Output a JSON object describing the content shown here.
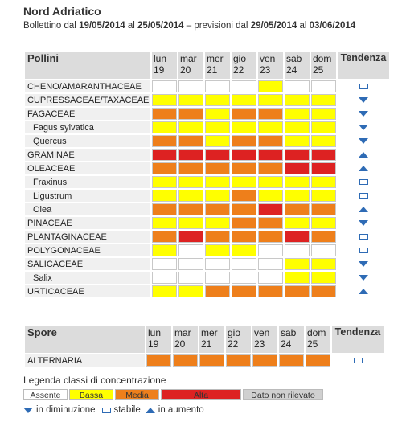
{
  "header": {
    "region": "Nord Adriatico",
    "bulletin_prefix": "Bollettino dal",
    "date_from": "19/05/2014",
    "al1": "al",
    "date_to": "25/05/2014",
    "forecast_prefix": "– previsioni dal",
    "forecast_from": "29/05/2014",
    "al2": "al",
    "forecast_to": "03/06/2014"
  },
  "days": [
    {
      "name": "lun",
      "num": "19"
    },
    {
      "name": "mar",
      "num": "20"
    },
    {
      "name": "mer",
      "num": "21"
    },
    {
      "name": "gio",
      "num": "22"
    },
    {
      "name": "ven",
      "num": "23"
    },
    {
      "name": "sab",
      "num": "24"
    },
    {
      "name": "dom",
      "num": "25"
    }
  ],
  "pollini": {
    "title": "Pollini",
    "trend_title": "Tendenza",
    "rows": [
      {
        "name": "CHENO/AMARANTHACEAE",
        "sub": false,
        "levels": [
          "A",
          "A",
          "A",
          "A",
          "B",
          "A",
          "A"
        ],
        "trend": "stable"
      },
      {
        "name": "CUPRESSACEAE/TAXACEAE",
        "sub": false,
        "levels": [
          "B",
          "B",
          "B",
          "B",
          "B",
          "B",
          "B"
        ],
        "trend": "down"
      },
      {
        "name": "FAGACEAE",
        "sub": false,
        "levels": [
          "M",
          "M",
          "B",
          "M",
          "M",
          "B",
          "B"
        ],
        "trend": "down"
      },
      {
        "name": "Fagus sylvatica",
        "sub": true,
        "levels": [
          "B",
          "B",
          "B",
          "B",
          "B",
          "B",
          "B"
        ],
        "trend": "down"
      },
      {
        "name": "Quercus",
        "sub": true,
        "levels": [
          "M",
          "M",
          "B",
          "M",
          "M",
          "B",
          "B"
        ],
        "trend": "down"
      },
      {
        "name": "GRAMINAE",
        "sub": false,
        "levels": [
          "H",
          "H",
          "H",
          "H",
          "H",
          "H",
          "H"
        ],
        "trend": "up"
      },
      {
        "name": "OLEACEAE",
        "sub": false,
        "levels": [
          "M",
          "M",
          "M",
          "M",
          "M",
          "H",
          "H"
        ],
        "trend": "up"
      },
      {
        "name": "Fraxinus",
        "sub": true,
        "levels": [
          "B",
          "B",
          "B",
          "B",
          "B",
          "B",
          "B"
        ],
        "trend": "stable"
      },
      {
        "name": "Ligustrum",
        "sub": true,
        "levels": [
          "B",
          "B",
          "B",
          "M",
          "B",
          "B",
          "B"
        ],
        "trend": "stable"
      },
      {
        "name": "Olea",
        "sub": true,
        "levels": [
          "M",
          "M",
          "M",
          "M",
          "H",
          "M",
          "M"
        ],
        "trend": "up"
      },
      {
        "name": "PINACEAE",
        "sub": false,
        "levels": [
          "B",
          "B",
          "B",
          "M",
          "M",
          "B",
          "B"
        ],
        "trend": "down"
      },
      {
        "name": "PLANTAGINACEAE",
        "sub": false,
        "levels": [
          "M",
          "H",
          "M",
          "M",
          "M",
          "H",
          "M"
        ],
        "trend": "stable"
      },
      {
        "name": "POLYGONACEAE",
        "sub": false,
        "levels": [
          "B",
          "A",
          "B",
          "B",
          "A",
          "A",
          "A"
        ],
        "trend": "stable"
      },
      {
        "name": "SALICACEAE",
        "sub": false,
        "levels": [
          "A",
          "A",
          "A",
          "A",
          "A",
          "B",
          "B"
        ],
        "trend": "down"
      },
      {
        "name": "Salix",
        "sub": true,
        "levels": [
          "A",
          "A",
          "A",
          "A",
          "A",
          "B",
          "B"
        ],
        "trend": "down"
      },
      {
        "name": "URTICACEAE",
        "sub": false,
        "levels": [
          "B",
          "B",
          "M",
          "M",
          "M",
          "M",
          "M"
        ],
        "trend": "up"
      }
    ]
  },
  "spore": {
    "title": "Spore",
    "trend_title": "Tendenza",
    "rows": [
      {
        "name": "ALTERNARIA",
        "sub": false,
        "levels": [
          "M",
          "M",
          "M",
          "M",
          "M",
          "M",
          "M"
        ],
        "trend": "stable"
      }
    ]
  },
  "legend": {
    "title": "Legenda classi di concentrazione",
    "items": [
      {
        "label": "Assente",
        "color": "#ffffff"
      },
      {
        "label": "Bassa",
        "color": "#ffff00"
      },
      {
        "label": "Media",
        "color": "#ee7f1b"
      },
      {
        "label": "Alta",
        "color": "#dd2222"
      },
      {
        "label": "Dato non rilevato",
        "color": "#d0d0d0"
      }
    ],
    "trend_down": "in diminuzione",
    "trend_stable": "stabile",
    "trend_up": "in aumento"
  }
}
